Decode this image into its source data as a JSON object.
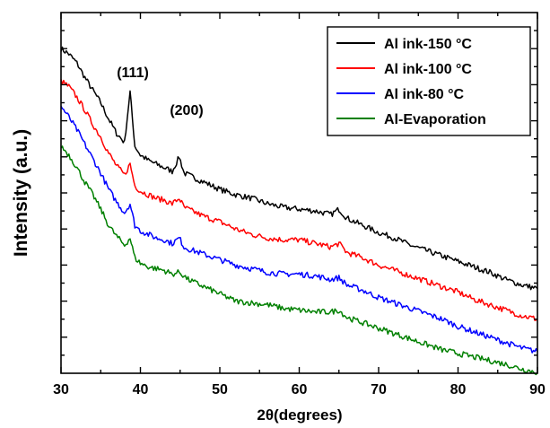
{
  "chart_data": {
    "type": "line",
    "xlabel": "2θ(degrees)",
    "ylabel": "Intensity (a.u.)",
    "xlim": [
      30,
      90
    ],
    "ylim": [
      0,
      10
    ],
    "xticks": [
      "30",
      "40",
      "50",
      "60",
      "70",
      "80",
      "90"
    ],
    "yticks_labels_shown": false,
    "grid": false,
    "legend_position": "top-right",
    "annotations": [
      {
        "text": "(111)",
        "x": 38.5,
        "y": 8.45
      },
      {
        "text": "(200)",
        "x": 45.3,
        "y": 7.4
      }
    ],
    "series": [
      {
        "name": "Al ink-150 °C",
        "color": "#000000",
        "x": [
          30,
          31,
          32,
          33,
          34,
          35,
          36,
          37,
          38,
          38.7,
          39.3,
          40,
          41,
          42,
          43,
          44,
          44.9,
          45.5,
          46,
          48,
          50,
          52,
          54,
          56,
          58,
          60,
          62,
          64,
          65,
          66,
          68,
          70,
          72,
          74,
          76,
          78,
          80,
          82,
          84,
          86,
          88,
          90
        ],
        "y": [
          9.0,
          8.85,
          8.6,
          8.2,
          7.85,
          7.5,
          7.05,
          6.65,
          6.4,
          7.8,
          6.3,
          6.05,
          5.9,
          5.8,
          5.7,
          5.6,
          6.0,
          5.55,
          5.5,
          5.3,
          5.1,
          4.95,
          4.85,
          4.7,
          4.6,
          4.55,
          4.5,
          4.4,
          4.55,
          4.3,
          4.1,
          3.9,
          3.75,
          3.55,
          3.4,
          3.25,
          3.1,
          2.95,
          2.8,
          2.6,
          2.45,
          2.35
        ]
      },
      {
        "name": "Al ink-100 °C",
        "color": "#ff0000",
        "x": [
          30,
          31,
          32,
          33,
          34,
          35,
          36,
          37,
          38,
          38.7,
          39.3,
          40,
          41,
          42,
          43,
          44,
          44.9,
          45.5,
          46,
          48,
          50,
          52,
          54,
          56,
          58,
          60,
          62,
          64,
          65,
          66,
          68,
          70,
          72,
          74,
          76,
          78,
          80,
          82,
          84,
          86,
          88,
          90
        ],
        "y": [
          8.1,
          7.95,
          7.65,
          7.3,
          6.9,
          6.55,
          6.1,
          5.75,
          5.5,
          5.8,
          5.2,
          5.05,
          4.95,
          4.85,
          4.8,
          4.7,
          4.85,
          4.6,
          4.55,
          4.35,
          4.2,
          4.0,
          3.85,
          3.75,
          3.7,
          3.7,
          3.6,
          3.5,
          3.6,
          3.35,
          3.2,
          3.0,
          2.85,
          2.7,
          2.55,
          2.4,
          2.25,
          2.05,
          1.9,
          1.75,
          1.6,
          1.5
        ]
      },
      {
        "name": "Al ink-80 °C",
        "color": "#0000ff",
        "x": [
          30,
          31,
          32,
          33,
          34,
          35,
          36,
          37,
          38,
          38.7,
          39.3,
          40,
          41,
          42,
          43,
          44,
          44.9,
          45.5,
          46,
          48,
          50,
          52,
          54,
          56,
          58,
          60,
          62,
          64,
          65,
          66,
          68,
          70,
          72,
          74,
          76,
          78,
          80,
          82,
          84,
          86,
          88,
          90
        ],
        "y": [
          7.4,
          7.1,
          6.75,
          6.35,
          5.95,
          5.55,
          5.1,
          4.75,
          4.45,
          4.7,
          4.1,
          3.95,
          3.85,
          3.75,
          3.7,
          3.6,
          3.75,
          3.5,
          3.45,
          3.3,
          3.15,
          3.0,
          2.9,
          2.8,
          2.75,
          2.75,
          2.7,
          2.6,
          2.65,
          2.45,
          2.3,
          2.1,
          1.95,
          1.8,
          1.65,
          1.5,
          1.3,
          1.15,
          1.0,
          0.85,
          0.7,
          0.6
        ]
      },
      {
        "name": "Al-Evaporation",
        "color": "#008000",
        "x": [
          30,
          31,
          32,
          33,
          34,
          35,
          36,
          37,
          38,
          38.7,
          39.3,
          40,
          41,
          42,
          43,
          44,
          44.9,
          45.5,
          46,
          48,
          50,
          52,
          54,
          56,
          58,
          60,
          62,
          64,
          65,
          66,
          68,
          70,
          72,
          74,
          76,
          78,
          80,
          82,
          84,
          86,
          88,
          90
        ],
        "y": [
          6.3,
          6.05,
          5.7,
          5.3,
          4.95,
          4.55,
          4.1,
          3.8,
          3.55,
          3.75,
          3.2,
          3.05,
          2.95,
          2.9,
          2.85,
          2.75,
          2.8,
          2.7,
          2.6,
          2.4,
          2.2,
          2.0,
          1.95,
          1.9,
          1.8,
          1.75,
          1.7,
          1.7,
          1.75,
          1.55,
          1.4,
          1.25,
          1.1,
          0.95,
          0.8,
          0.65,
          0.55,
          0.45,
          0.35,
          0.25,
          0.12,
          0.02
        ]
      }
    ]
  }
}
